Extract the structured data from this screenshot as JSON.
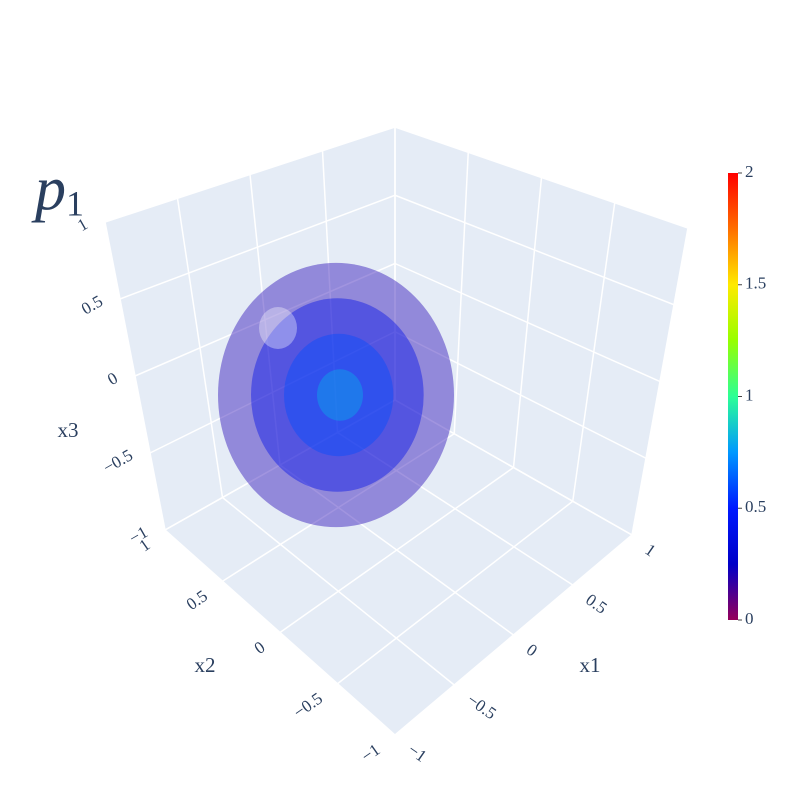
{
  "chart_data": {
    "type": "isosurface",
    "title": {
      "text": "p",
      "subscript": "1"
    },
    "axes": {
      "x1": {
        "title": "x1",
        "range": [
          -1,
          1
        ],
        "ticks": [
          {
            "value": -1,
            "label": "−1"
          },
          {
            "value": -0.5,
            "label": "−0.5"
          },
          0,
          0.5,
          1
        ]
      },
      "x2": {
        "title": "x2",
        "range": [
          -1,
          1
        ],
        "ticks": [
          {
            "value": -1,
            "label": "−1"
          },
          {
            "value": -0.5,
            "label": "−0.5"
          },
          0,
          0.5,
          1
        ]
      },
      "x3": {
        "title": "x3",
        "range": [
          -1,
          1
        ],
        "ticks": [
          {
            "value": -1,
            "label": "−1"
          },
          {
            "value": -0.5,
            "label": "−0.5"
          },
          0,
          0.5,
          1
        ]
      }
    },
    "levels": [
      0.2,
      0.4,
      0.6,
      0.8
    ],
    "opacity": 0.42,
    "colorbar": {
      "range": [
        0,
        2
      ],
      "ticks": [
        0,
        0.5,
        1,
        1.5,
        2
      ]
    },
    "colorscale": [
      "#96005a",
      "#0000c8",
      "#0019ff",
      "#0098ff",
      "#2cff96",
      "#97ff00",
      "#ffea00",
      "#ff6f00",
      "#ff0000"
    ]
  }
}
